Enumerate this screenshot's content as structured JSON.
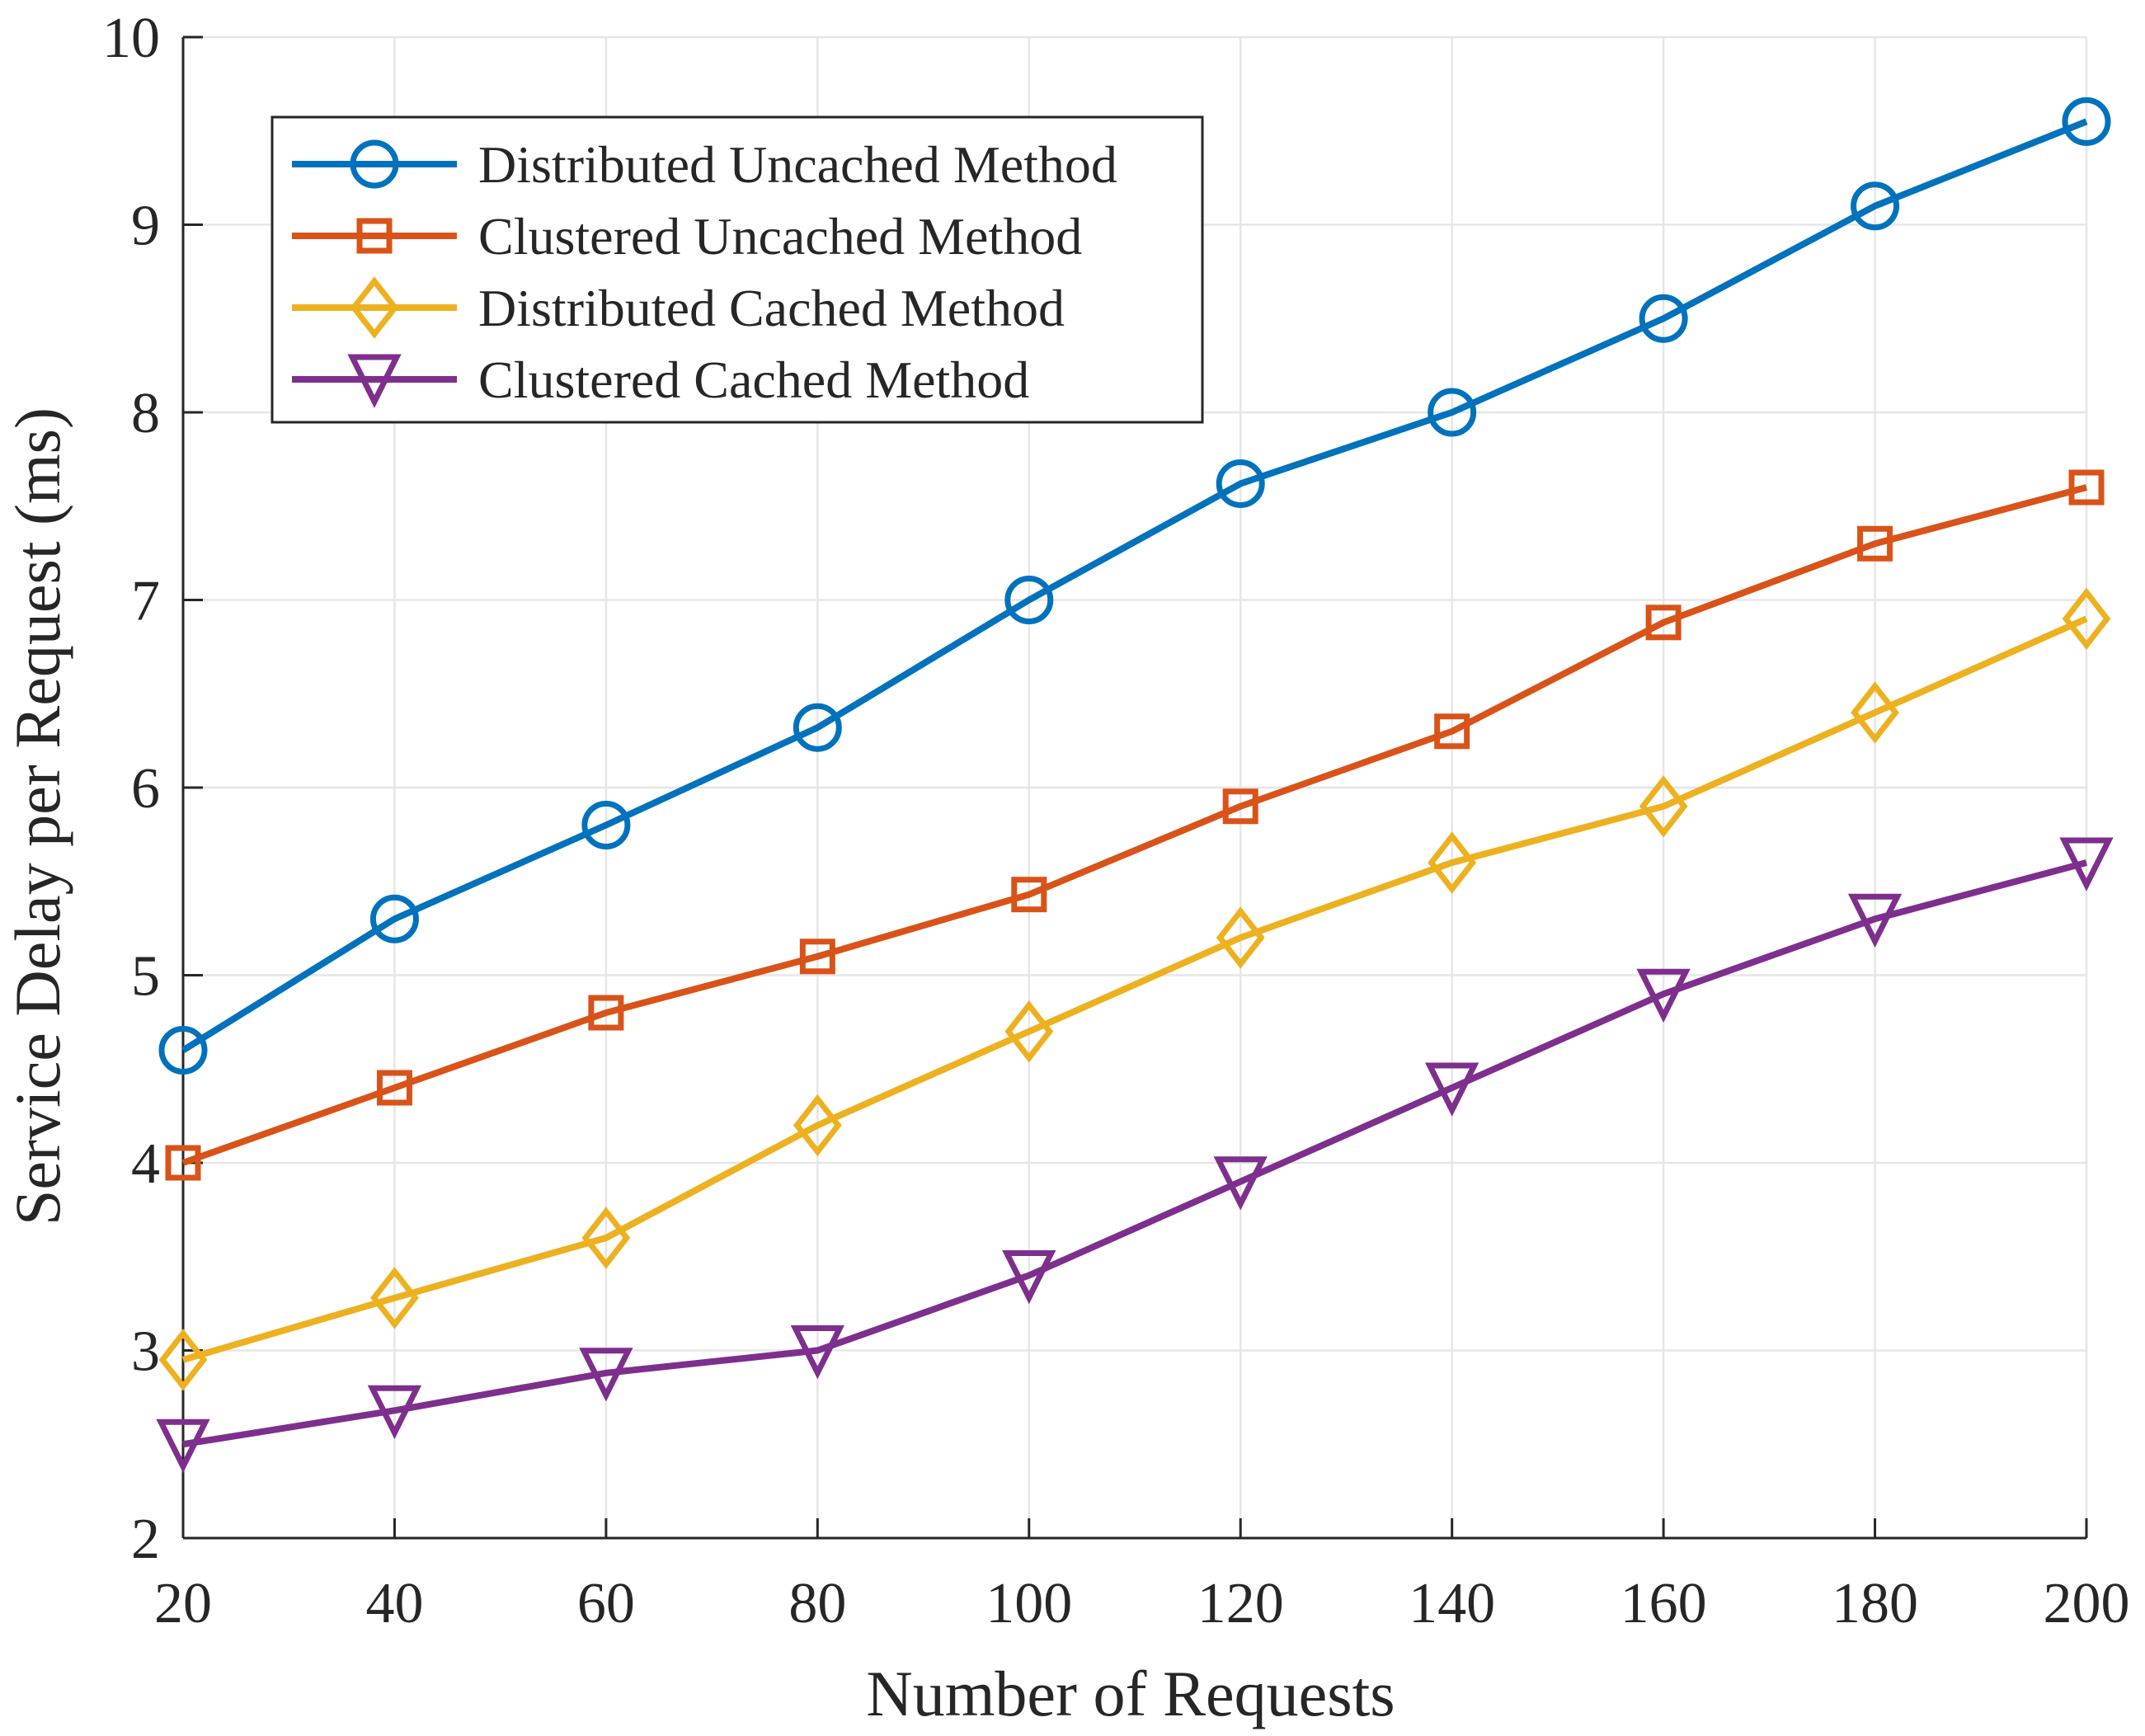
{
  "chart_data": {
    "type": "line",
    "title": "",
    "xlabel": "Number of Requests",
    "ylabel": "Service Delay per Request (ms)",
    "x": [
      20,
      40,
      60,
      80,
      100,
      120,
      140,
      160,
      180,
      200
    ],
    "xlim": [
      20,
      200
    ],
    "ylim": [
      2,
      10
    ],
    "xticks": [
      20,
      40,
      60,
      80,
      100,
      120,
      140,
      160,
      180,
      200
    ],
    "yticks": [
      2,
      3,
      4,
      5,
      6,
      7,
      8,
      9,
      10
    ],
    "grid": true,
    "legend_position": "top-left",
    "series": [
      {
        "name": "Distributed Uncached Method",
        "color": "#0072BD",
        "marker": "circle",
        "values": [
          4.6,
          5.3,
          5.8,
          6.32,
          7.0,
          7.62,
          8.0,
          8.5,
          9.1,
          9.55
        ]
      },
      {
        "name": "Clustered Uncached Method",
        "color": "#D95319",
        "marker": "square",
        "values": [
          4.0,
          4.4,
          4.8,
          5.1,
          5.43,
          5.9,
          6.3,
          6.88,
          7.3,
          7.6
        ]
      },
      {
        "name": "Distributed Cached Method",
        "color": "#EDB120",
        "marker": "diamond",
        "values": [
          2.95,
          3.28,
          3.6,
          4.2,
          4.7,
          5.2,
          5.6,
          5.9,
          6.4,
          6.9
        ]
      },
      {
        "name": "Clustered Cached Method",
        "color": "#7E2F8E",
        "marker": "triangle-down",
        "values": [
          2.5,
          2.68,
          2.88,
          3.0,
          3.4,
          3.9,
          4.4,
          4.9,
          5.3,
          5.6
        ]
      }
    ]
  }
}
